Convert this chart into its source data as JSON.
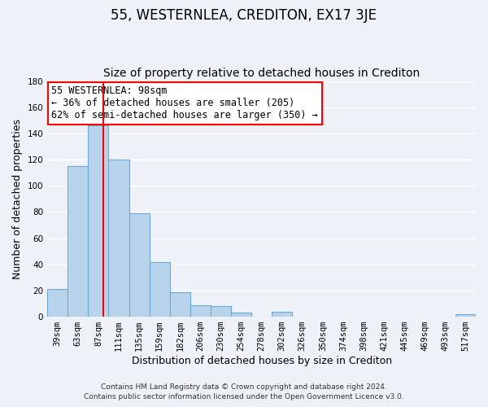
{
  "title": "55, WESTERNLEA, CREDITON, EX17 3JE",
  "subtitle": "Size of property relative to detached houses in Crediton",
  "xlabel": "Distribution of detached houses by size in Crediton",
  "ylabel": "Number of detached properties",
  "bar_labels": [
    "39sqm",
    "63sqm",
    "87sqm",
    "111sqm",
    "135sqm",
    "159sqm",
    "182sqm",
    "206sqm",
    "230sqm",
    "254sqm",
    "278sqm",
    "302sqm",
    "326sqm",
    "350sqm",
    "374sqm",
    "398sqm",
    "421sqm",
    "445sqm",
    "469sqm",
    "493sqm",
    "517sqm"
  ],
  "bar_values": [
    21,
    115,
    146,
    120,
    79,
    42,
    19,
    9,
    8,
    3,
    0,
    4,
    0,
    0,
    0,
    0,
    0,
    0,
    0,
    0,
    2
  ],
  "bar_color": "#b8d4ec",
  "bar_edge_color": "#6aaad4",
  "vline_x_index": 2,
  "vline_x_offset": 0.25,
  "vline_color": "red",
  "annotation_title": "55 WESTERNLEA: 98sqm",
  "annotation_line1": "← 36% of detached houses are smaller (205)",
  "annotation_line2": "62% of semi-detached houses are larger (350) →",
  "annotation_box_color": "white",
  "annotation_box_edge_color": "red",
  "ylim": [
    0,
    180
  ],
  "yticks": [
    0,
    20,
    40,
    60,
    80,
    100,
    120,
    140,
    160,
    180
  ],
  "footer1": "Contains HM Land Registry data © Crown copyright and database right 2024.",
  "footer2": "Contains public sector information licensed under the Open Government Licence v3.0.",
  "background_color": "#eef2f8",
  "grid_color": "white",
  "title_fontsize": 12,
  "subtitle_fontsize": 10,
  "axis_label_fontsize": 9,
  "tick_fontsize": 7.5,
  "footer_fontsize": 6.5,
  "annotation_fontsize": 8.5
}
